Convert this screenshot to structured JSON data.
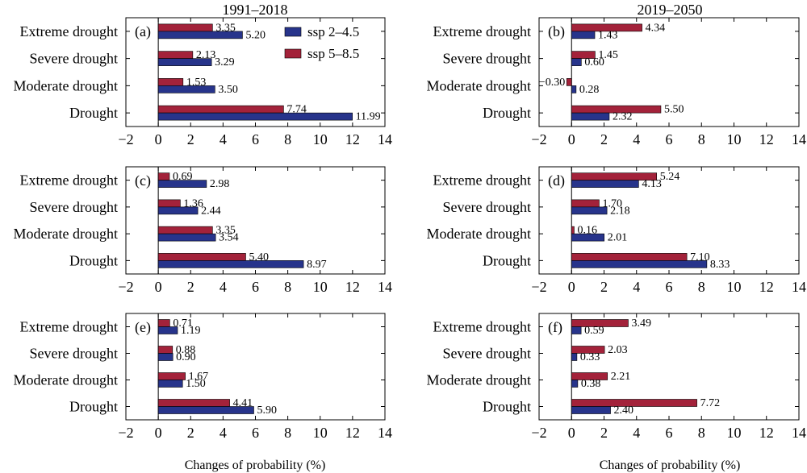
{
  "column_titles": [
    "1991–2018",
    "2019–2050"
  ],
  "xlabel": "Changes of probability (%)",
  "legend": [
    {
      "label": "ssp 2–4.5",
      "color": "#27348b"
    },
    {
      "label": "ssp 5–8.5",
      "color": "#a3223a"
    }
  ],
  "chart_data": [
    {
      "type": "bar",
      "orientation": "horizontal",
      "panel": "(a)",
      "title": "1991–2018",
      "categories": [
        "Extreme drought",
        "Severe drought",
        "Moderate drought",
        "Drought"
      ],
      "series": [
        {
          "name": "ssp 5–8.5",
          "values": [
            3.35,
            2.13,
            1.53,
            7.74
          ],
          "labels": [
            "3.35",
            "2.13",
            "1.53",
            "7.74"
          ]
        },
        {
          "name": "ssp 2–4.5",
          "values": [
            5.2,
            3.29,
            3.5,
            11.99
          ],
          "labels": [
            "5.20",
            "3.29",
            "3.50",
            "11.99"
          ]
        }
      ],
      "xlim": [
        -2,
        14
      ],
      "xticks": [
        "−2",
        "0",
        "2",
        "4",
        "6",
        "8",
        "10",
        "12",
        "14"
      ]
    },
    {
      "type": "bar",
      "orientation": "horizontal",
      "panel": "(b)",
      "title": "2019–2050",
      "categories": [
        "Extreme drought",
        "Severe drought",
        "Moderate drought",
        "Drought"
      ],
      "series": [
        {
          "name": "ssp 5–8.5",
          "values": [
            4.34,
            1.45,
            -0.3,
            5.5
          ],
          "labels": [
            "4.34",
            "1.45",
            "−0.30",
            "5.50"
          ]
        },
        {
          "name": "ssp 2–4.5",
          "values": [
            1.43,
            0.6,
            0.28,
            2.32
          ],
          "labels": [
            "1.43",
            "0.60",
            "0.28",
            "2.32"
          ]
        }
      ],
      "xlim": [
        -2,
        14
      ],
      "xticks": [
        "−2",
        "0",
        "2",
        "4",
        "6",
        "8",
        "10",
        "12",
        "14"
      ]
    },
    {
      "type": "bar",
      "orientation": "horizontal",
      "panel": "(c)",
      "categories": [
        "Extreme drought",
        "Severe drought",
        "Moderate drought",
        "Drought"
      ],
      "series": [
        {
          "name": "ssp 5–8.5",
          "values": [
            0.69,
            1.36,
            3.35,
            5.4
          ],
          "labels": [
            "0.69",
            "1.36",
            "3.35",
            "5.40"
          ]
        },
        {
          "name": "ssp 2–4.5",
          "values": [
            2.98,
            2.44,
            3.54,
            8.97
          ],
          "labels": [
            "2.98",
            "2.44",
            "3.54",
            "8.97"
          ]
        }
      ],
      "xlim": [
        -2,
        14
      ],
      "xticks": [
        "−2",
        "0",
        "2",
        "4",
        "6",
        "8",
        "10",
        "12",
        "14"
      ]
    },
    {
      "type": "bar",
      "orientation": "horizontal",
      "panel": "(d)",
      "categories": [
        "Extreme drought",
        "Severe drought",
        "Moderate drought",
        "Drought"
      ],
      "series": [
        {
          "name": "ssp 5–8.5",
          "values": [
            5.24,
            1.7,
            0.16,
            7.1
          ],
          "labels": [
            "5.24",
            "1.70",
            "0.16",
            "7.10"
          ]
        },
        {
          "name": "ssp 2–4.5",
          "values": [
            4.13,
            2.18,
            2.01,
            8.33
          ],
          "labels": [
            "4.13",
            "2.18",
            "2.01",
            "8.33"
          ]
        }
      ],
      "xlim": [
        -2,
        14
      ],
      "xticks": [
        "−2",
        "0",
        "2",
        "4",
        "6",
        "8",
        "10",
        "12",
        "14"
      ]
    },
    {
      "type": "bar",
      "orientation": "horizontal",
      "panel": "(e)",
      "categories": [
        "Extreme drought",
        "Severe drought",
        "Moderate drought",
        "Drought"
      ],
      "series": [
        {
          "name": "ssp 5–8.5",
          "values": [
            0.71,
            0.88,
            1.67,
            4.41
          ],
          "labels": [
            "0.71",
            "0.88",
            "1.67",
            "4.41"
          ]
        },
        {
          "name": "ssp 2–4.5",
          "values": [
            1.19,
            0.9,
            1.5,
            5.9
          ],
          "labels": [
            "1.19",
            "0.90",
            "1.50",
            "5.90"
          ]
        }
      ],
      "xlim": [
        -2,
        14
      ],
      "xticks": [
        "−2",
        "0",
        "2",
        "4",
        "6",
        "8",
        "10",
        "12",
        "14"
      ],
      "xlabel": "Changes of probability (%)"
    },
    {
      "type": "bar",
      "orientation": "horizontal",
      "panel": "(f)",
      "categories": [
        "Extreme drought",
        "Severe drought",
        "Moderate drought",
        "Drought"
      ],
      "series": [
        {
          "name": "ssp 5–8.5",
          "values": [
            3.49,
            2.03,
            2.21,
            7.72
          ],
          "labels": [
            "3.49",
            "2.03",
            "2.21",
            "7.72"
          ]
        },
        {
          "name": "ssp 2–4.5",
          "values": [
            0.59,
            0.33,
            0.38,
            2.4
          ],
          "labels": [
            "0.59",
            "0.33",
            "0.38",
            "2.40"
          ]
        }
      ],
      "xlim": [
        -2,
        14
      ],
      "xticks": [
        "−2",
        "0",
        "2",
        "4",
        "6",
        "8",
        "10",
        "12",
        "14"
      ],
      "xlabel": "Changes of probability (%)"
    }
  ]
}
